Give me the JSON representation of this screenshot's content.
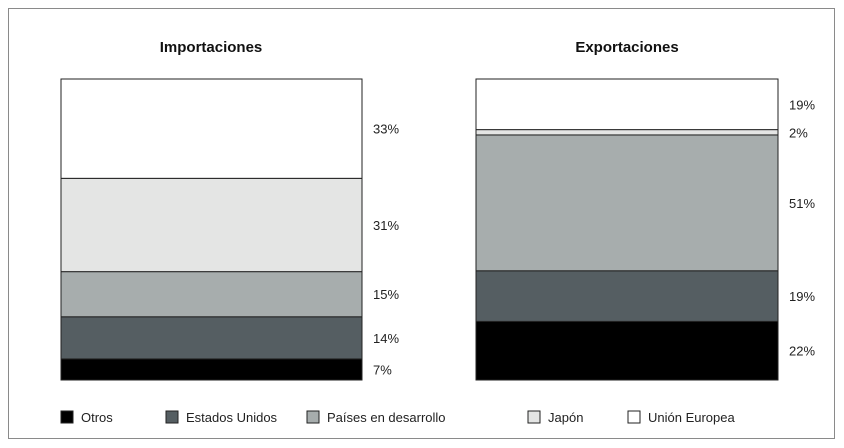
{
  "chart_data": [
    {
      "type": "stacked-bar",
      "title": "Importaciones",
      "unit": "%",
      "segments": [
        {
          "category": "Otros",
          "value": 7,
          "label": "7%"
        },
        {
          "category": "Estados Unidos",
          "value": 14,
          "label": "14%"
        },
        {
          "category": "Países en desarrollo",
          "value": 15,
          "label": "15%"
        },
        {
          "category": "Japón",
          "value": 31,
          "label": "31%"
        },
        {
          "category": "Unión Europea",
          "value": 33,
          "label": "33%"
        }
      ]
    },
    {
      "type": "stacked-bar",
      "title": "Exportaciones",
      "unit": "%",
      "segments": [
        {
          "category": "Otros",
          "value": 22,
          "label": "22%"
        },
        {
          "category": "Estados Unidos",
          "value": 19,
          "label": "19%"
        },
        {
          "category": "Países en desarrollo",
          "value": 51,
          "label": "51%"
        },
        {
          "category": "Japón",
          "value": 2,
          "label": "2%"
        },
        {
          "category": "Unión Europea",
          "value": 19,
          "label": "19%"
        }
      ]
    }
  ],
  "legend": {
    "items": [
      {
        "label": "Otros",
        "color": "#000000"
      },
      {
        "label": "Estados Unidos",
        "color": "#555e62"
      },
      {
        "label": "Países en desarrollo",
        "color": "#a7adad"
      },
      {
        "label": "Japón",
        "color": "#e4e5e4"
      },
      {
        "label": "Unión Europea",
        "color": "#ffffff"
      }
    ]
  }
}
